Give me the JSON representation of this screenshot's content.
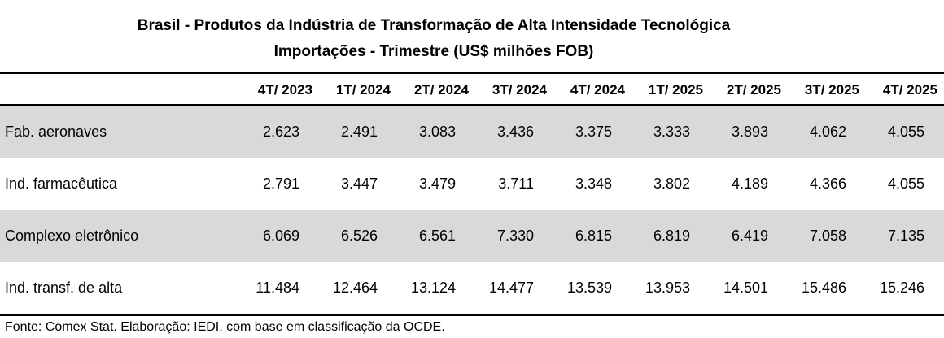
{
  "chart_data": {
    "type": "table",
    "title": "Brasil - Produtos da Indústria de Transformação de Alta Intensidade Tecnológica",
    "subtitle": "Importações - Trimestre (US$ milhões FOB)",
    "columns": [
      "4T/ 2023",
      "1T/ 2024",
      "2T/ 2024",
      "3T/ 2024",
      "4T/ 2024",
      "1T/ 2025",
      "2T/ 2025",
      "3T/ 2025",
      "4T/ 2025"
    ],
    "rows": [
      {
        "label": "Fab. aeronaves",
        "values": [
          "2.623",
          "2.491",
          "3.083",
          "3.436",
          "3.375",
          "3.333",
          "3.893",
          "4.062",
          "4.055"
        ]
      },
      {
        "label": "Ind. farmacêutica",
        "values": [
          "2.791",
          "3.447",
          "3.479",
          "3.711",
          "3.348",
          "3.802",
          "4.189",
          "4.366",
          "4.055"
        ]
      },
      {
        "label": "Complexo eletrônico",
        "values": [
          "6.069",
          "6.526",
          "6.561",
          "7.330",
          "6.815",
          "6.819",
          "6.419",
          "7.058",
          "7.135"
        ]
      },
      {
        "label": "Ind. transf. de alta",
        "values": [
          "11.484",
          "12.464",
          "13.124",
          "14.477",
          "13.539",
          "13.953",
          "14.501",
          "15.486",
          "15.246"
        ]
      }
    ],
    "source": "Fonte: Comex Stat. Elaboração: IEDI, com base em classificação da OCDE.",
    "shaded_color": "#d9d9d9"
  }
}
